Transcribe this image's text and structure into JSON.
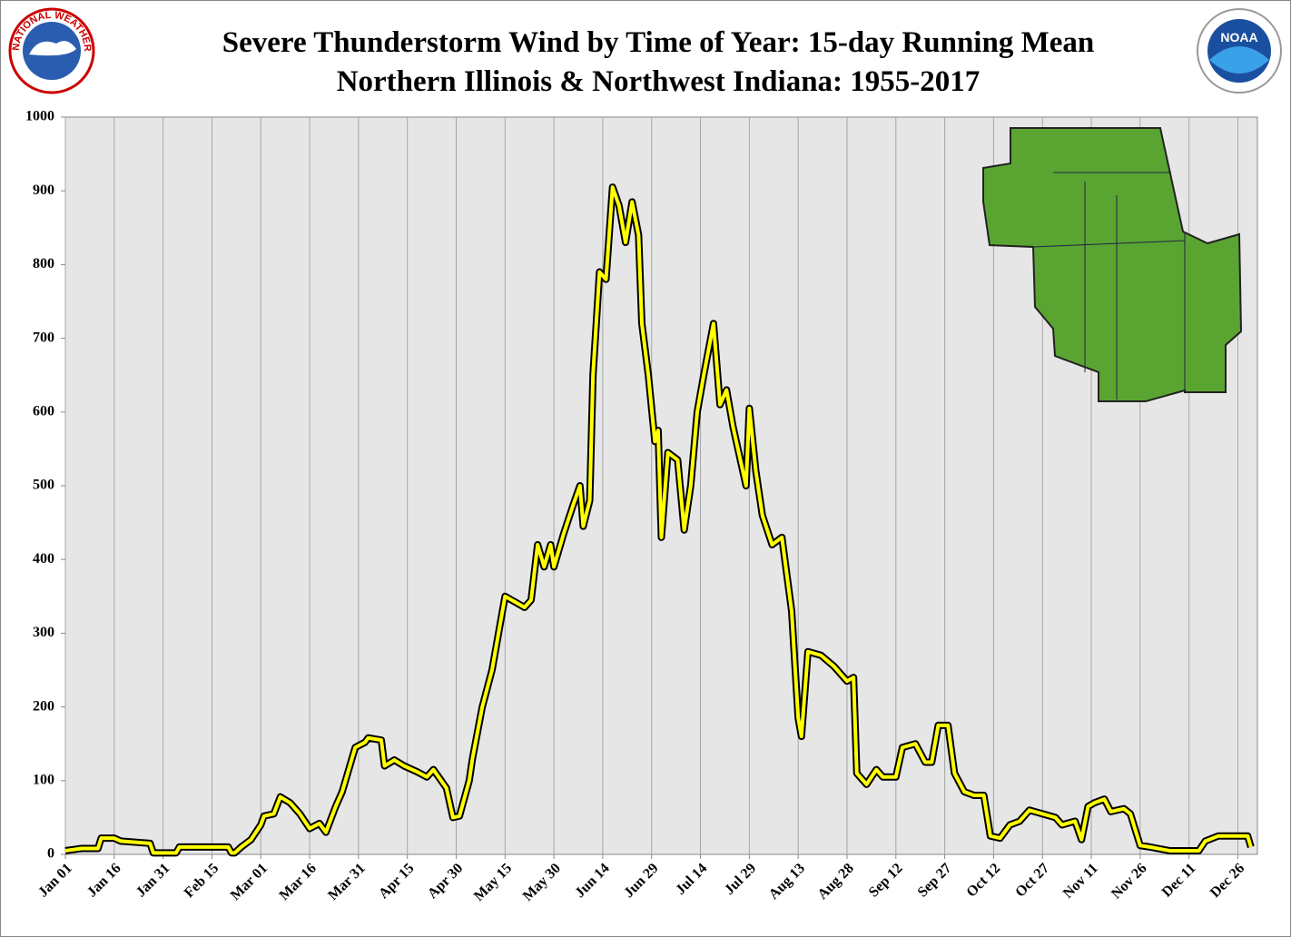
{
  "chart_data": {
    "type": "line",
    "title": "Severe Thunderstorm Wind by Time of Year: 15-day Running Mean",
    "subtitle": "Northern Illinois & Northwest Indiana:  1955-2017",
    "logo_left_text": "NATIONAL WEATHER SERVICE",
    "logo_right_text": "NOAA",
    "x": [
      1,
      6,
      11,
      12,
      16,
      18,
      21,
      27,
      28,
      35,
      36,
      51,
      52,
      53,
      55,
      58,
      61,
      62,
      65,
      67,
      70,
      73,
      76,
      79,
      81,
      84,
      86,
      90,
      93,
      94,
      98,
      99,
      102,
      105,
      109,
      112,
      114,
      118,
      120,
      122,
      125,
      126,
      129,
      132,
      134,
      136,
      140,
      142,
      144,
      146,
      148,
      150,
      151,
      154,
      157,
      159,
      160,
      162,
      163,
      165,
      167,
      169,
      171,
      173,
      175,
      177,
      178,
      180,
      182,
      183,
      184,
      186,
      189,
      191,
      193,
      195,
      197,
      200,
      202,
      204,
      206,
      210,
      211,
      213,
      215,
      218,
      221,
      224,
      226,
      227,
      229,
      233,
      237,
      241,
      243,
      244,
      247,
      250,
      252,
      256,
      258,
      262,
      265,
      267,
      269,
      272,
      274,
      277,
      280,
      283,
      285,
      288,
      291,
      294,
      297,
      301,
      305,
      307,
      311,
      313,
      315,
      317,
      320,
      322,
      326,
      328,
      331,
      334,
      340,
      344,
      349,
      351,
      355,
      364,
      365
    ],
    "series": [
      {
        "name": "15-day Running Mean",
        "color": "#ffff00",
        "outline": "#000000",
        "values": [
          5,
          8,
          8,
          22,
          22,
          18,
          17,
          15,
          2,
          2,
          10,
          10,
          2,
          2,
          10,
          20,
          40,
          52,
          55,
          78,
          70,
          55,
          35,
          42,
          30,
          65,
          85,
          145,
          152,
          158,
          155,
          120,
          128,
          120,
          112,
          105,
          115,
          90,
          50,
          52,
          100,
          130,
          200,
          250,
          300,
          350,
          340,
          335,
          345,
          420,
          390,
          420,
          390,
          435,
          475,
          500,
          445,
          480,
          650,
          790,
          780,
          905,
          880,
          830,
          885,
          840,
          720,
          650,
          560,
          575,
          430,
          545,
          535,
          440,
          500,
          600,
          650,
          720,
          610,
          630,
          580,
          500,
          605,
          520,
          460,
          420,
          430,
          330,
          185,
          160,
          275,
          270,
          255,
          235,
          240,
          110,
          95,
          115,
          105,
          105,
          145,
          150,
          125,
          125,
          175,
          175,
          110,
          85,
          80,
          80,
          25,
          22,
          40,
          45,
          60,
          55,
          50,
          40,
          45,
          20,
          65,
          70,
          75,
          58,
          62,
          55,
          12,
          10,
          5,
          5,
          5,
          18,
          25,
          25,
          10
        ]
      }
    ],
    "xlim": [
      1,
      367
    ],
    "xticks": [
      {
        "value": 1,
        "label": "Jan 01"
      },
      {
        "value": 16,
        "label": "Jan 16"
      },
      {
        "value": 31,
        "label": "Jan 31"
      },
      {
        "value": 46,
        "label": "Feb 15"
      },
      {
        "value": 61,
        "label": "Mar 01"
      },
      {
        "value": 76,
        "label": "Mar 16"
      },
      {
        "value": 91,
        "label": "Mar 31"
      },
      {
        "value": 106,
        "label": "Apr 15"
      },
      {
        "value": 121,
        "label": "Apr 30"
      },
      {
        "value": 136,
        "label": "May 15"
      },
      {
        "value": 151,
        "label": "May 30"
      },
      {
        "value": 166,
        "label": "Jun 14"
      },
      {
        "value": 181,
        "label": "Jun 29"
      },
      {
        "value": 196,
        "label": "Jul 14"
      },
      {
        "value": 211,
        "label": "Jul 29"
      },
      {
        "value": 226,
        "label": "Aug 13"
      },
      {
        "value": 241,
        "label": "Aug 28"
      },
      {
        "value": 256,
        "label": "Sep 12"
      },
      {
        "value": 271,
        "label": "Sep 27"
      },
      {
        "value": 286,
        "label": "Oct 12"
      },
      {
        "value": 301,
        "label": "Oct 27"
      },
      {
        "value": 316,
        "label": "Nov 11"
      },
      {
        "value": 331,
        "label": "Nov 26"
      },
      {
        "value": 346,
        "label": "Dec 11"
      },
      {
        "value": 361,
        "label": "Dec 26"
      }
    ],
    "ylim": [
      0,
      1000
    ],
    "yticks": [
      0,
      100,
      200,
      300,
      400,
      500,
      600,
      700,
      800,
      900,
      1000
    ],
    "grid": "x"
  }
}
